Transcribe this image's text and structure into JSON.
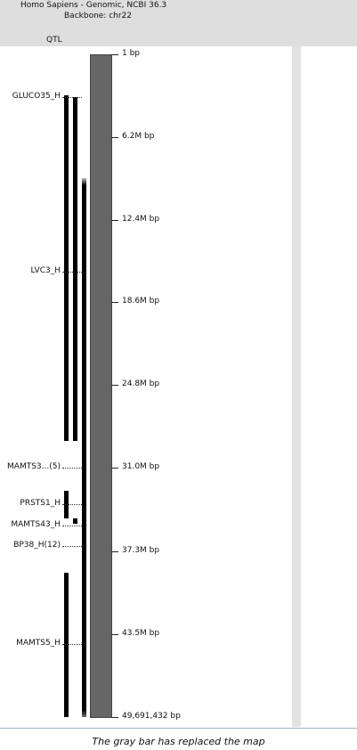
{
  "header": {
    "line1": "Homo Sapiens - Genomic, NCBI 36.3",
    "line2": "Backbone: chr22",
    "track_label": "QTL"
  },
  "scale": {
    "min_bp": 1,
    "max_bp": 49691432,
    "ticks": [
      {
        "bp": 1,
        "label": "1 bp"
      },
      {
        "bp": 6200000,
        "label": "6.2M bp"
      },
      {
        "bp": 12400000,
        "label": "12.4M bp"
      },
      {
        "bp": 18600000,
        "label": "18.6M bp"
      },
      {
        "bp": 24800000,
        "label": "24.8M bp"
      },
      {
        "bp": 31000000,
        "label": "31.0M bp"
      },
      {
        "bp": 37300000,
        "label": "37.3M bp"
      },
      {
        "bp": 43500000,
        "label": "43.5M bp"
      },
      {
        "bp": 49691432,
        "label": "49,691,432 bp"
      }
    ]
  },
  "qtls": [
    {
      "name": "gluco35-label",
      "label": "GLUCO35_H",
      "label_bp": 3200000
    },
    {
      "name": "lvc3-label",
      "label": "LVC3_H",
      "label_bp": 16300000
    },
    {
      "name": "mamts3-label",
      "label": "MAMTS3...(5)",
      "label_bp": 31000000
    },
    {
      "name": "prsts1-label",
      "label": "PRSTS1_H",
      "label_bp": 33700000
    },
    {
      "name": "mamts43-label",
      "label": "MAMTS43_H",
      "label_bp": 35300000
    },
    {
      "name": "bp38-label",
      "label": "BP38_H(12)",
      "label_bp": 36900000
    },
    {
      "name": "mamts5-label",
      "label": "MAMTS5_H",
      "label_bp": 44200000
    }
  ],
  "bars": [
    {
      "name": "qtl-bar-gluco35",
      "start_bp": 3100000,
      "end_bp": 29000000,
      "col": 0
    },
    {
      "name": "qtl-bar-lvc3",
      "start_bp": 3200000,
      "end_bp": 29000000,
      "col": 1
    },
    {
      "name": "qtl-bar-prsts1",
      "start_bp": 32700000,
      "end_bp": 34800000,
      "col": 0
    },
    {
      "name": "qtl-bar-mamts43",
      "start_bp": 34800000,
      "end_bp": 35200000,
      "col": 1
    },
    {
      "name": "qtl-bar-mamts5",
      "start_bp": 38900000,
      "end_bp": 49691432,
      "col": 0
    },
    {
      "name": "qtl-bar-cluster",
      "start_bp": 9300000,
      "end_bp": 49691432,
      "col": 2,
      "fade": true
    }
  ],
  "caption": "The gray bar has replaced the map"
}
